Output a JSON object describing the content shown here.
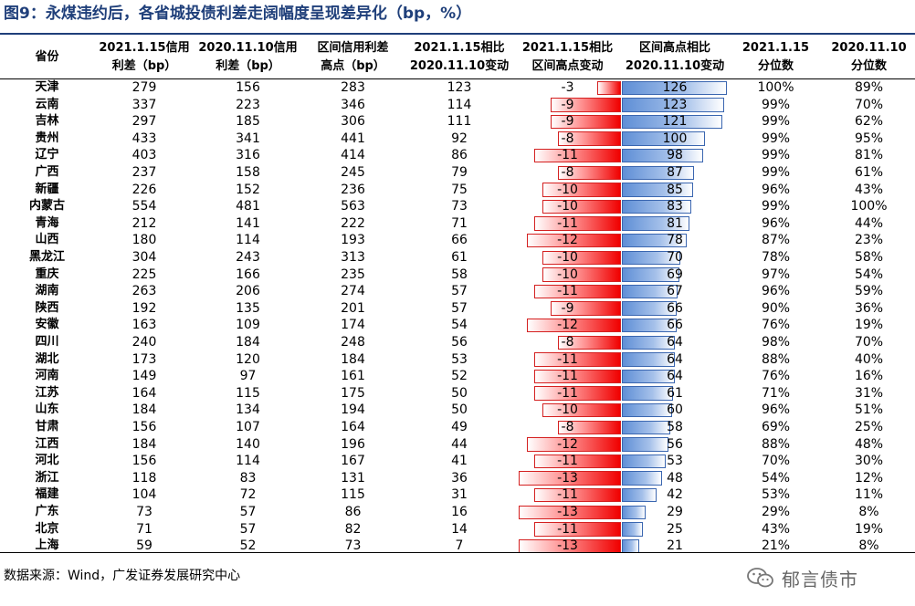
{
  "title": "图9：永煤违约后，各省城投债利差走阔幅度呈现差异化（bp，%）",
  "headers": [
    [
      "省份"
    ],
    [
      "2021.1.15信用",
      "利差（bp）"
    ],
    [
      "2020.11.10信用",
      "利差（bp）"
    ],
    [
      "区间信用利差",
      "高点（bp）"
    ],
    [
      "2021.1.15相比",
      "2020.11.10变动"
    ],
    [
      "2021.1.15相比",
      "区间高点变动"
    ],
    [
      "区间高点相比",
      "2020.11.10变动"
    ],
    [
      "2021.1.15",
      "分位数"
    ],
    [
      "2020.11.10",
      "分位数"
    ]
  ],
  "rows": [
    {
      "province": "天津",
      "s0115": "279",
      "s1110": "156",
      "peak": "283",
      "chg1": "123",
      "vs_peak": -3,
      "peak_chg": 126,
      "pct0115": "100%",
      "pct1110": "89%"
    },
    {
      "province": "云南",
      "s0115": "337",
      "s1110": "223",
      "peak": "346",
      "chg1": "114",
      "vs_peak": -9,
      "peak_chg": 123,
      "pct0115": "99%",
      "pct1110": "70%"
    },
    {
      "province": "吉林",
      "s0115": "297",
      "s1110": "185",
      "peak": "306",
      "chg1": "111",
      "vs_peak": -9,
      "peak_chg": 121,
      "pct0115": "99%",
      "pct1110": "62%"
    },
    {
      "province": "贵州",
      "s0115": "433",
      "s1110": "341",
      "peak": "441",
      "chg1": "92",
      "vs_peak": -8,
      "peak_chg": 100,
      "pct0115": "99%",
      "pct1110": "95%"
    },
    {
      "province": "辽宁",
      "s0115": "403",
      "s1110": "316",
      "peak": "414",
      "chg1": "86",
      "vs_peak": -11,
      "peak_chg": 98,
      "pct0115": "99%",
      "pct1110": "81%"
    },
    {
      "province": "广西",
      "s0115": "237",
      "s1110": "158",
      "peak": "245",
      "chg1": "79",
      "vs_peak": -8,
      "peak_chg": 87,
      "pct0115": "99%",
      "pct1110": "61%"
    },
    {
      "province": "新疆",
      "s0115": "226",
      "s1110": "152",
      "peak": "236",
      "chg1": "75",
      "vs_peak": -10,
      "peak_chg": 85,
      "pct0115": "96%",
      "pct1110": "43%"
    },
    {
      "province": "内蒙古",
      "s0115": "554",
      "s1110": "481",
      "peak": "563",
      "chg1": "73",
      "vs_peak": -10,
      "peak_chg": 83,
      "pct0115": "99%",
      "pct1110": "100%"
    },
    {
      "province": "青海",
      "s0115": "212",
      "s1110": "141",
      "peak": "222",
      "chg1": "71",
      "vs_peak": -11,
      "peak_chg": 81,
      "pct0115": "96%",
      "pct1110": "44%"
    },
    {
      "province": "山西",
      "s0115": "180",
      "s1110": "114",
      "peak": "193",
      "chg1": "66",
      "vs_peak": -12,
      "peak_chg": 78,
      "pct0115": "87%",
      "pct1110": "23%"
    },
    {
      "province": "黑龙江",
      "s0115": "304",
      "s1110": "243",
      "peak": "313",
      "chg1": "61",
      "vs_peak": -10,
      "peak_chg": 70,
      "pct0115": "78%",
      "pct1110": "58%"
    },
    {
      "province": "重庆",
      "s0115": "225",
      "s1110": "166",
      "peak": "235",
      "chg1": "58",
      "vs_peak": -10,
      "peak_chg": 69,
      "pct0115": "97%",
      "pct1110": "54%"
    },
    {
      "province": "湖南",
      "s0115": "263",
      "s1110": "206",
      "peak": "274",
      "chg1": "57",
      "vs_peak": -11,
      "peak_chg": 67,
      "pct0115": "96%",
      "pct1110": "59%"
    },
    {
      "province": "陕西",
      "s0115": "192",
      "s1110": "135",
      "peak": "201",
      "chg1": "57",
      "vs_peak": -9,
      "peak_chg": 66,
      "pct0115": "90%",
      "pct1110": "36%"
    },
    {
      "province": "安徽",
      "s0115": "163",
      "s1110": "109",
      "peak": "174",
      "chg1": "54",
      "vs_peak": -12,
      "peak_chg": 66,
      "pct0115": "76%",
      "pct1110": "19%"
    },
    {
      "province": "四川",
      "s0115": "240",
      "s1110": "184",
      "peak": "248",
      "chg1": "56",
      "vs_peak": -8,
      "peak_chg": 64,
      "pct0115": "98%",
      "pct1110": "70%"
    },
    {
      "province": "湖北",
      "s0115": "173",
      "s1110": "120",
      "peak": "184",
      "chg1": "53",
      "vs_peak": -11,
      "peak_chg": 64,
      "pct0115": "88%",
      "pct1110": "40%"
    },
    {
      "province": "河南",
      "s0115": "149",
      "s1110": "97",
      "peak": "161",
      "chg1": "52",
      "vs_peak": -11,
      "peak_chg": 64,
      "pct0115": "76%",
      "pct1110": "16%"
    },
    {
      "province": "江苏",
      "s0115": "164",
      "s1110": "115",
      "peak": "175",
      "chg1": "50",
      "vs_peak": -11,
      "peak_chg": 61,
      "pct0115": "71%",
      "pct1110": "31%"
    },
    {
      "province": "山东",
      "s0115": "184",
      "s1110": "134",
      "peak": "194",
      "chg1": "50",
      "vs_peak": -10,
      "peak_chg": 60,
      "pct0115": "96%",
      "pct1110": "51%"
    },
    {
      "province": "甘肃",
      "s0115": "156",
      "s1110": "107",
      "peak": "164",
      "chg1": "49",
      "vs_peak": -8,
      "peak_chg": 58,
      "pct0115": "69%",
      "pct1110": "25%"
    },
    {
      "province": "江西",
      "s0115": "184",
      "s1110": "140",
      "peak": "196",
      "chg1": "44",
      "vs_peak": -12,
      "peak_chg": 56,
      "pct0115": "88%",
      "pct1110": "48%"
    },
    {
      "province": "河北",
      "s0115": "156",
      "s1110": "114",
      "peak": "167",
      "chg1": "41",
      "vs_peak": -11,
      "peak_chg": 53,
      "pct0115": "70%",
      "pct1110": "30%"
    },
    {
      "province": "浙江",
      "s0115": "118",
      "s1110": "83",
      "peak": "131",
      "chg1": "36",
      "vs_peak": -13,
      "peak_chg": 48,
      "pct0115": "54%",
      "pct1110": "12%"
    },
    {
      "province": "福建",
      "s0115": "104",
      "s1110": "72",
      "peak": "115",
      "chg1": "31",
      "vs_peak": -11,
      "peak_chg": 42,
      "pct0115": "53%",
      "pct1110": "11%"
    },
    {
      "province": "广东",
      "s0115": "73",
      "s1110": "57",
      "peak": "86",
      "chg1": "16",
      "vs_peak": -13,
      "peak_chg": 29,
      "pct0115": "29%",
      "pct1110": "8%"
    },
    {
      "province": "北京",
      "s0115": "71",
      "s1110": "57",
      "peak": "82",
      "chg1": "14",
      "vs_peak": -11,
      "peak_chg": 25,
      "pct0115": "43%",
      "pct1110": "19%"
    },
    {
      "province": "上海",
      "s0115": "59",
      "s1110": "52",
      "peak": "73",
      "chg1": "7",
      "vs_peak": -13,
      "peak_chg": 21,
      "pct0115": "21%",
      "pct1110": "8%"
    }
  ],
  "source": "数据来源：Wind，广发证券发展研究中心",
  "logo_text": "郁言债市",
  "logo_icon": "wechat-icon",
  "colors": {
    "title": "#1f3f7a",
    "negative_bar": "#f00000",
    "positive_bar": "#5f8fd6"
  }
}
